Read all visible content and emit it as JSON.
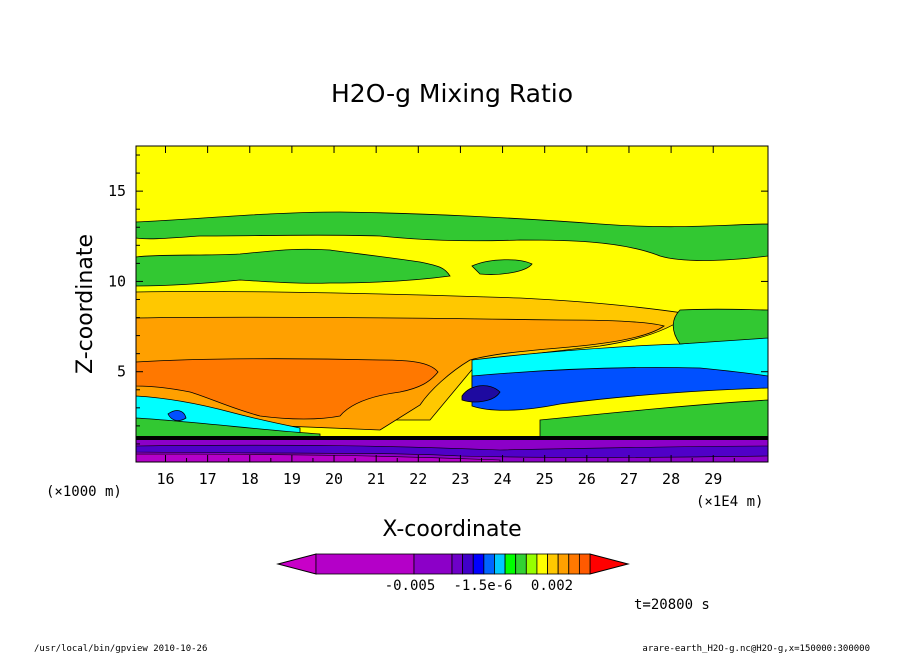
{
  "chart_data": {
    "type": "heatmap",
    "title": "H2O-g Mixing Ratio",
    "xlabel": "X-coordinate",
    "ylabel": "Z-coordinate",
    "x_unit_left": "(×1000 m)",
    "x_unit_right": "(×1E4 m)",
    "x_ticks": [
      "16",
      "17",
      "18",
      "19",
      "20",
      "21",
      "22",
      "23",
      "24",
      "25",
      "26",
      "27",
      "28",
      "29"
    ],
    "y_ticks": [
      "5",
      "10",
      "15"
    ],
    "xlim": [
      15.3,
      30.3
    ],
    "ylim": [
      0,
      17.5
    ],
    "colorbar_labels": [
      "-0.005",
      "-1.5e-6",
      "0.002"
    ],
    "colorbar_colors": [
      "#c800c8",
      "#b400c8",
      "#8c00c8",
      "#6e00c8",
      "#4000c8",
      "#0000ff",
      "#0064ff",
      "#00c8ff",
      "#00ff00",
      "#32d232",
      "#96ff00",
      "#ffff00",
      "#ffc800",
      "#ffa000",
      "#ff7800",
      "#ff5a00",
      "#ff0000"
    ],
    "time_label": "t=20800 s",
    "footer_left": "/usr/local/bin/gpview  2010-10-26",
    "footer_right": "arare-earth_H2O-g.nc@H2O-g,x=150000:300000"
  }
}
